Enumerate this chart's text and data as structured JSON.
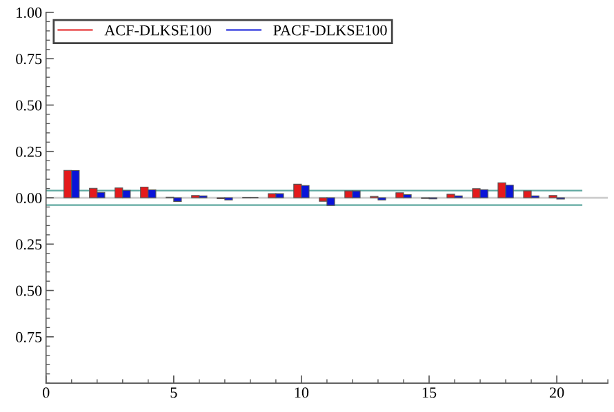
{
  "chart_data": {
    "type": "bar",
    "x": [
      1,
      2,
      3,
      4,
      5,
      6,
      7,
      8,
      9,
      10,
      11,
      12,
      13,
      14,
      15,
      16,
      17,
      18,
      19,
      20
    ],
    "series": [
      {
        "name": "ACF-DLKSE100",
        "color": "#e41a1c",
        "values": [
          0.148,
          0.051,
          0.053,
          0.058,
          0.003,
          0.012,
          -0.005,
          0.002,
          0.022,
          0.073,
          -0.019,
          0.037,
          0.007,
          0.027,
          -0.004,
          0.019,
          0.049,
          0.081,
          0.037,
          0.012
        ]
      },
      {
        "name": "PACF-DLKSE100",
        "color": "#0a14d8",
        "values": [
          0.147,
          0.029,
          0.04,
          0.043,
          -0.02,
          0.01,
          -0.012,
          0.002,
          0.022,
          0.066,
          -0.041,
          0.037,
          -0.012,
          0.017,
          -0.006,
          0.01,
          0.044,
          0.068,
          0.01,
          -0.007
        ]
      }
    ],
    "xlim": [
      0,
      22
    ],
    "xticks": [
      0,
      5,
      10,
      15,
      20
    ],
    "ylim": [
      -1,
      1
    ],
    "yticks": [
      {
        "value": -0.75,
        "label": "0.75"
      },
      {
        "value": -0.5,
        "label": "0.50"
      },
      {
        "value": -0.25,
        "label": "0.25"
      },
      {
        "value": 0,
        "label": "0.00"
      },
      {
        "value": 0.25,
        "label": "0.25"
      },
      {
        "value": 0.5,
        "label": "0.50"
      },
      {
        "value": 0.75,
        "label": "0.75"
      },
      {
        "value": 1,
        "label": "1.00"
      }
    ],
    "ref_lines": [
      {
        "axis": "y",
        "value": 0,
        "color": "#cccccc"
      },
      {
        "axis": "y",
        "value": 0.039,
        "color": "#5fa8a0"
      },
      {
        "axis": "y",
        "value": -0.039,
        "color": "#5fa8a0"
      }
    ],
    "grid": false,
    "legend": "top left"
  }
}
